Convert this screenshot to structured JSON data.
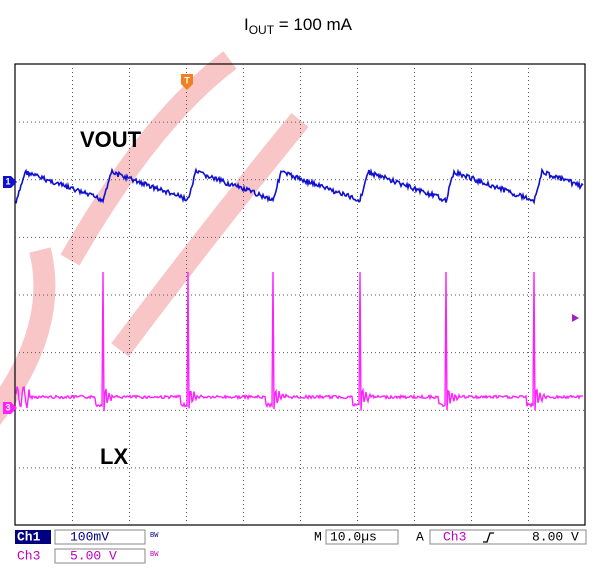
{
  "title": {
    "main": "I",
    "sub": "OUT",
    "rest": " = 100 mA"
  },
  "traces": {
    "ch1_label": "VOUT",
    "ch3_label": "LX"
  },
  "markers": {
    "trigger": "T",
    "ch1": "1",
    "ch3": "3"
  },
  "status": {
    "row1": {
      "channel": "Ch1",
      "scale": "100mV",
      "bw": "BW",
      "m": "M",
      "timebase": "10.0µs",
      "a": "A",
      "trig_channel": "Ch3",
      "trig_level": "8.00 V"
    },
    "row2": {
      "channel": "Ch3",
      "scale": "5.00 V",
      "bw": "BW"
    }
  }
}
